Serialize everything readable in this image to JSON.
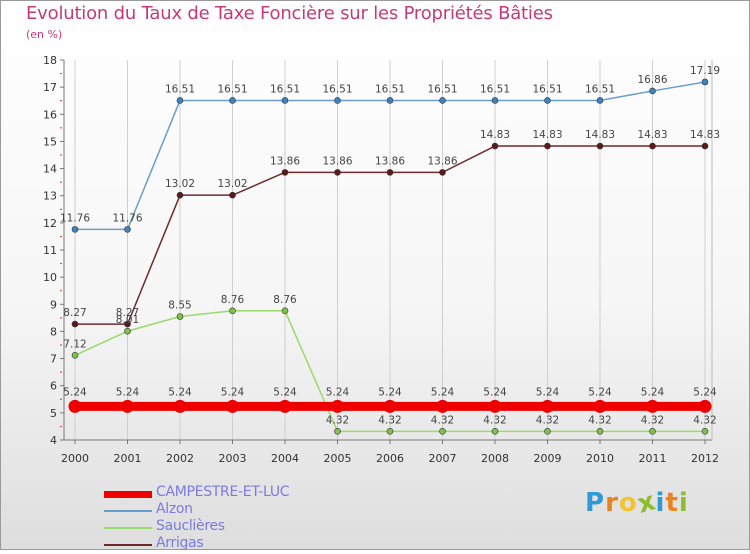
{
  "header": {
    "title": "Evolution du Taux de Taxe Foncière sur les Propriétés Bâties",
    "unit": "(en %)"
  },
  "logo": {
    "letters": [
      "P",
      "r",
      "o",
      "x",
      "i",
      "t",
      "i"
    ],
    "colors": [
      "#2f9ad6",
      "#e8841f",
      "#f1c232",
      "#8bbd2f",
      "#2f9ad6",
      "#e8841f",
      "#8bbd2f"
    ]
  },
  "chart_data": {
    "type": "line",
    "title": "Evolution du Taux de Taxe Foncière sur les Propriétés Bâties",
    "ylabel": "(en %)",
    "xlabel": "",
    "categories": [
      "2000",
      "2001",
      "2002",
      "2003",
      "2004",
      "2005",
      "2006",
      "2007",
      "2008",
      "2009",
      "2010",
      "2011",
      "2012"
    ],
    "ylim": [
      4,
      18
    ],
    "yticks": [
      "4",
      "5",
      "6",
      "7",
      "8",
      "9",
      "10",
      "11",
      "12",
      "13",
      "14",
      "15",
      "16",
      "17",
      "18"
    ],
    "grid": "vertical",
    "series": [
      {
        "name": "Alzon",
        "color": "#6b9ccc",
        "marker": "#3f82c0",
        "width": 1.5,
        "radius": 3,
        "values": [
          11.76,
          11.76,
          16.51,
          16.51,
          16.51,
          16.51,
          16.51,
          16.51,
          16.51,
          16.51,
          16.51,
          16.86,
          17.19
        ],
        "labels": [
          "11.76",
          "11.76",
          "16.51",
          "16.51",
          "16.51",
          "16.51",
          "16.51",
          "16.51",
          "16.51",
          "16.51",
          "16.51",
          "16.86",
          "17.19"
        ]
      },
      {
        "name": "Arrigas",
        "color": "#6e2a2a",
        "marker": "#5a1a1a",
        "width": 1.5,
        "radius": 3,
        "values": [
          8.27,
          8.27,
          13.02,
          13.02,
          13.86,
          13.86,
          13.86,
          13.86,
          14.83,
          14.83,
          14.83,
          14.83,
          14.83
        ],
        "labels": [
          "8.27",
          "8.27",
          "13.02",
          "13.02",
          "13.86",
          "13.86",
          "13.86",
          "13.86",
          "14.83",
          "14.83",
          "14.83",
          "14.83",
          "14.83"
        ]
      },
      {
        "name": "Sauclières",
        "color": "#9ad96a",
        "marker": "#7cc447",
        "width": 1.5,
        "radius": 3,
        "values": [
          7.12,
          8.01,
          8.55,
          8.76,
          8.76,
          4.32,
          4.32,
          4.32,
          4.32,
          4.32,
          4.32,
          4.32,
          4.32
        ],
        "labels": [
          "7.12",
          "8.01",
          "8.55",
          "8.76",
          "8.76",
          "4.32",
          "4.32",
          "4.32",
          "4.32",
          "4.32",
          "4.32",
          "4.32",
          "4.32"
        ]
      },
      {
        "name": "CAMPESTRE-ET-LUC",
        "color": "#ee0000",
        "marker": "#ee0000",
        "width": 9,
        "radius": 6.5,
        "values": [
          5.24,
          5.24,
          5.24,
          5.24,
          5.24,
          5.24,
          5.24,
          5.24,
          5.24,
          5.24,
          5.24,
          5.24,
          5.24
        ],
        "labels": [
          "5.24",
          "5.24",
          "5.24",
          "5.24",
          "5.24",
          "5.24",
          "5.24",
          "5.24",
          "5.24",
          "5.24",
          "5.24",
          "5.24",
          "5.24"
        ]
      }
    ],
    "legend": [
      {
        "name": "CAMPESTRE-ET-LUC",
        "color": "#ee0000",
        "thickness": 7
      },
      {
        "name": "Alzon",
        "color": "#6b9ccc",
        "thickness": 2
      },
      {
        "name": "Sauclières",
        "color": "#9ad96a",
        "thickness": 2
      },
      {
        "name": "Arrigas",
        "color": "#6e2a2a",
        "thickness": 2
      }
    ],
    "legend_position": "bottom-left"
  }
}
